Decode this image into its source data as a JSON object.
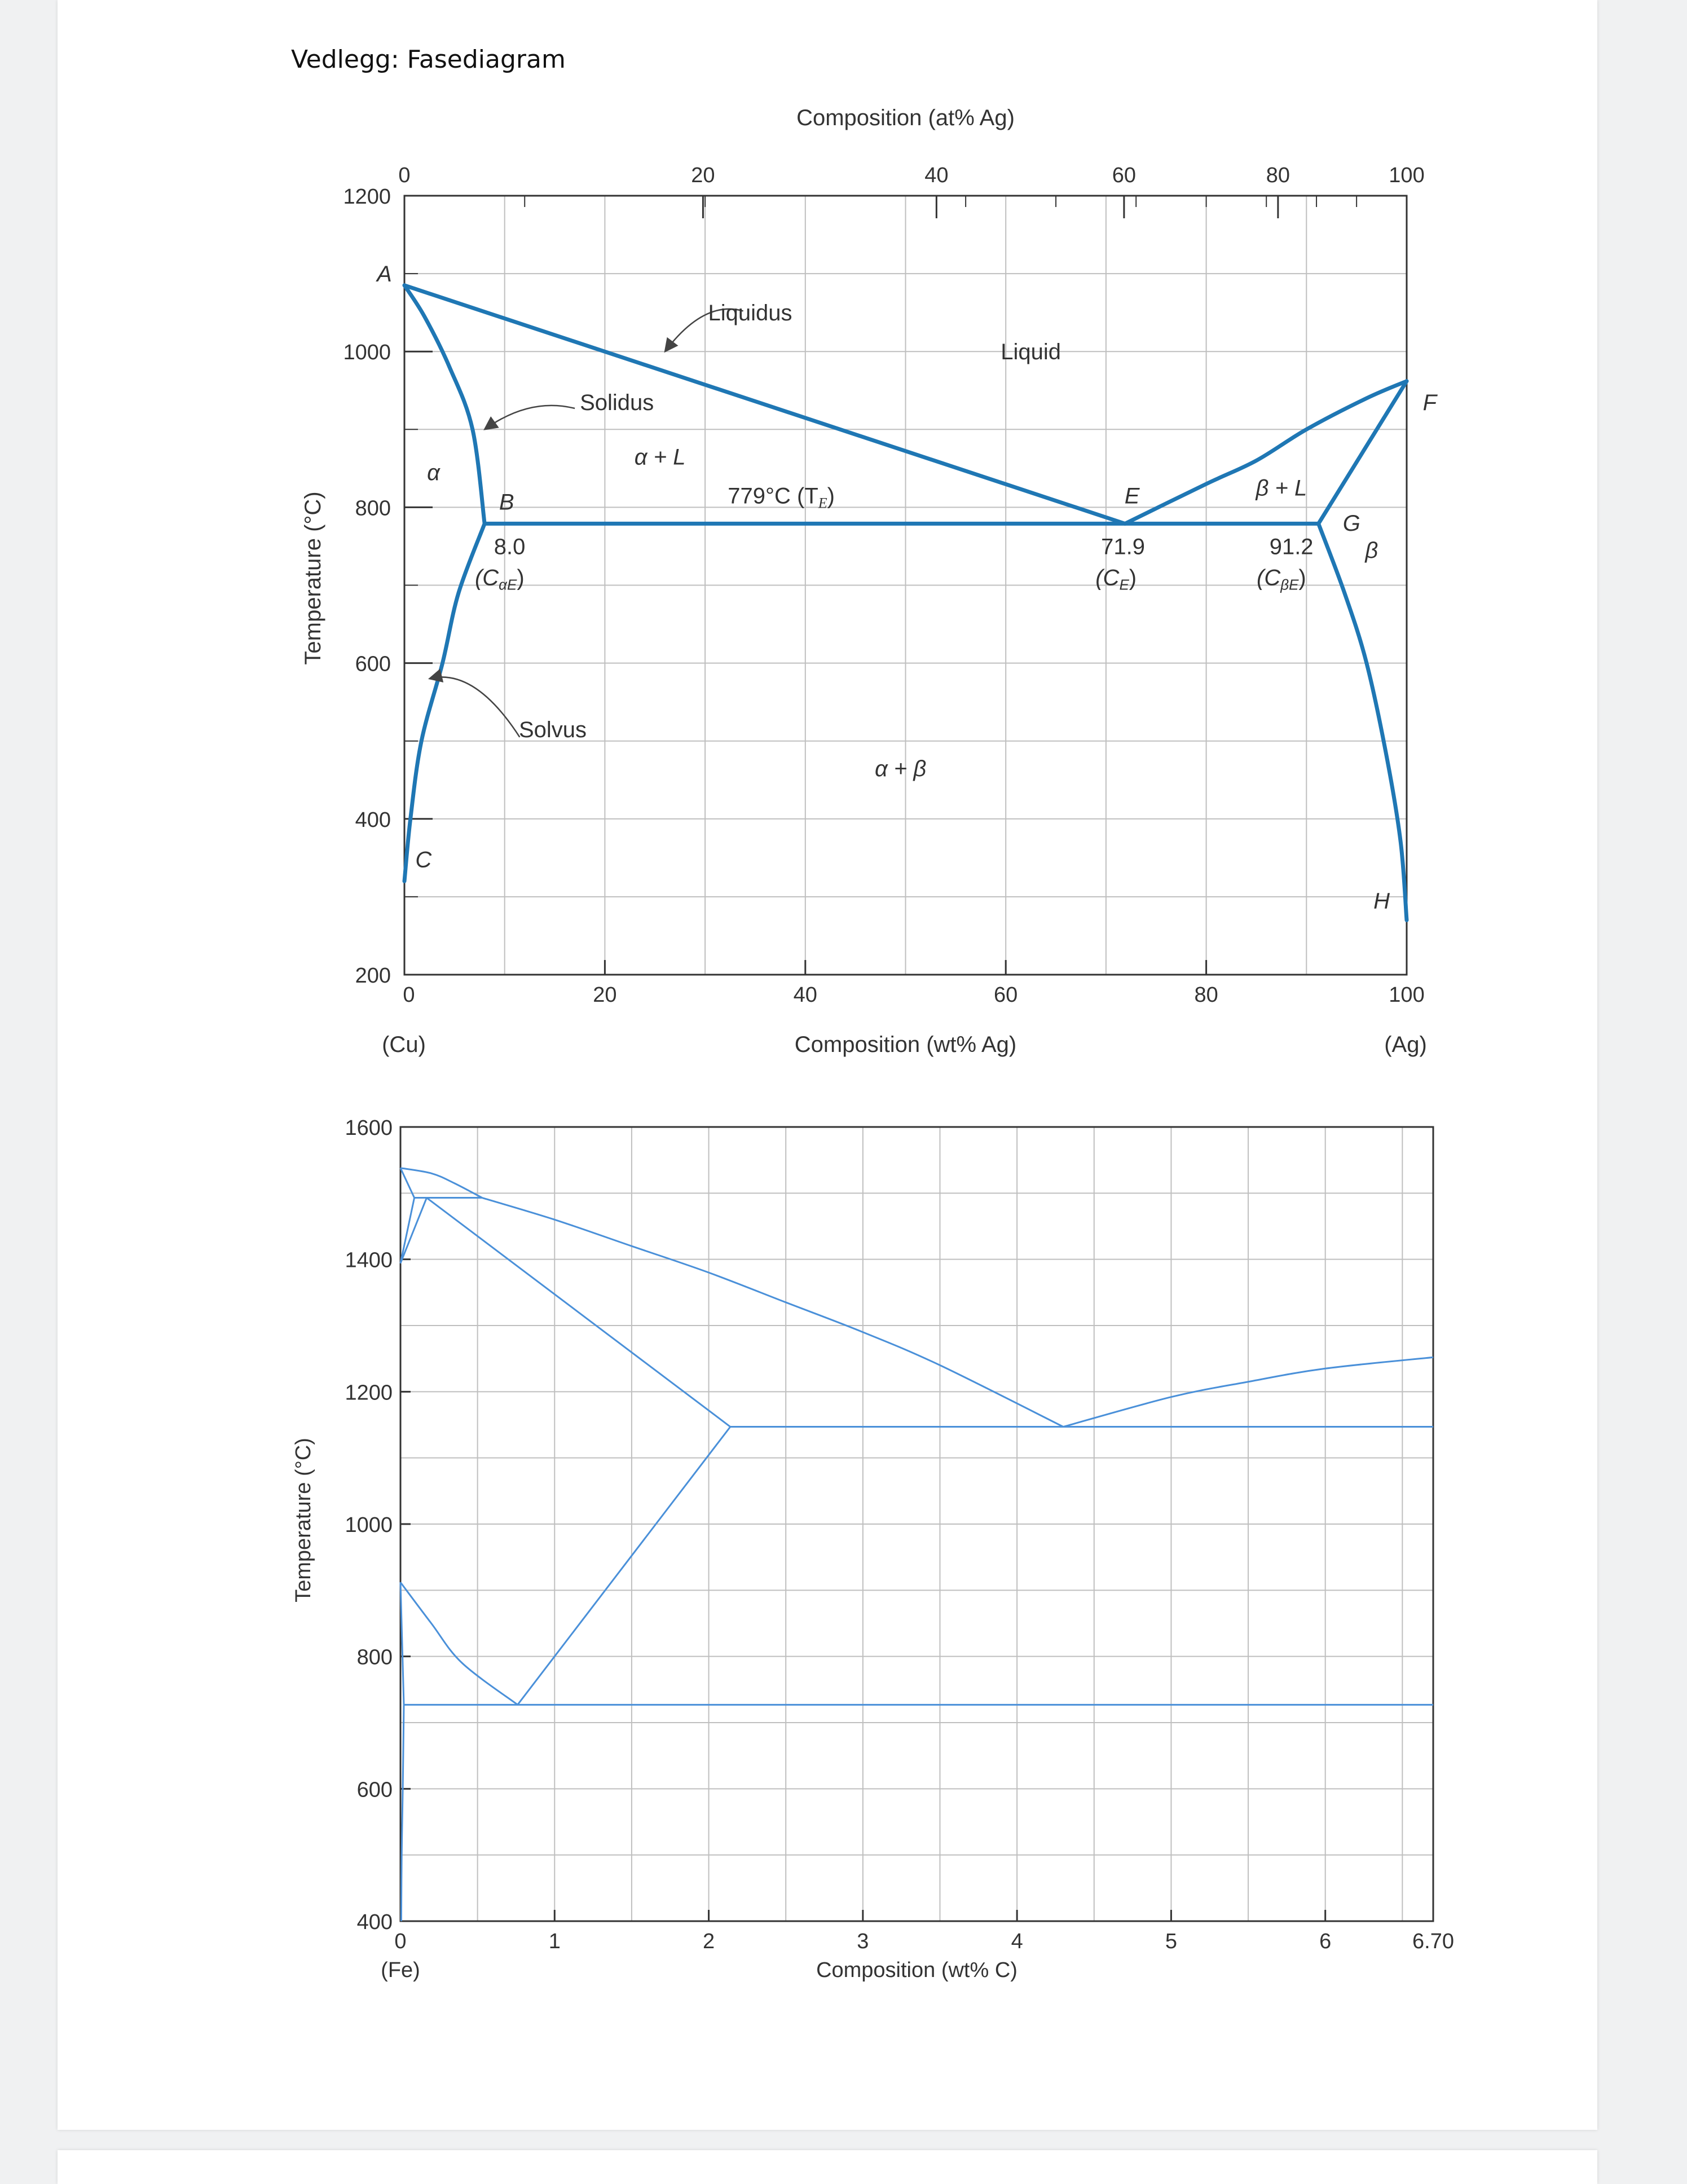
{
  "document": {
    "title": "Vedlegg: Fasediagram"
  },
  "colors": {
    "phase_line": "#1f77b4",
    "thin_line": "#4a90d9",
    "grid": "#bfbfbf",
    "frame": "#333333"
  },
  "chart_data": [
    {
      "type": "line",
      "title": "",
      "xlabel": "Composition (wt% Ag)",
      "xlabel_top": "Composition (at% Ag)",
      "ylabel": "Temperature (°C)",
      "xlim": [
        0,
        100
      ],
      "ylim": [
        200,
        1200
      ],
      "x_ticks": [
        "0",
        "20",
        "40",
        "60",
        "80",
        "100"
      ],
      "x_ticks_top": [
        "0",
        "20",
        "40",
        "60",
        "80",
        "100"
      ],
      "y_ticks": [
        "200",
        "400",
        "600",
        "800",
        "1000",
        "1200"
      ],
      "end_labels": {
        "left": "(Cu)",
        "right": "(Ag)"
      },
      "grid": true,
      "series": [
        {
          "values": [
            [
              0,
              1085
            ],
            [
              71.9,
              779
            ]
          ]
        },
        {
          "values": [
            [
              0,
              1085
            ],
            [
              2,
              1045
            ],
            [
              4.5,
              980
            ],
            [
              6.8,
              900
            ],
            [
              8,
              779
            ]
          ]
        },
        {
          "values": [
            [
              0,
              320
            ],
            [
              0.6,
              400
            ],
            [
              1.7,
              500
            ],
            [
              3.8,
              600
            ],
            [
              5.4,
              690
            ],
            [
              8,
              779
            ]
          ]
        },
        {
          "values": [
            [
              8,
              779
            ],
            [
              91.2,
              779
            ]
          ]
        },
        {
          "values": [
            [
              71.9,
              779
            ],
            [
              80,
              830
            ],
            [
              85,
              860
            ],
            [
              90,
              900
            ],
            [
              96,
              940
            ],
            [
              100,
              962
            ]
          ]
        },
        {
          "values": [
            [
              100,
              962
            ],
            [
              91.2,
              779
            ]
          ]
        },
        {
          "values": [
            [
              91.2,
              779
            ],
            [
              93.8,
              690
            ],
            [
              96,
              600
            ],
            [
              98,
              480
            ],
            [
              99.4,
              370
            ],
            [
              100,
              270
            ]
          ]
        }
      ],
      "annotations": [
        {
          "text": "A",
          "x": -2,
          "y": 1090,
          "style": "italic"
        },
        {
          "text": "Liquidus",
          "x": 34.5,
          "y": 1040
        },
        {
          "text": "Liquid",
          "x": 62.5,
          "y": 990
        },
        {
          "text": "F",
          "x": 102.3,
          "y": 925,
          "style": "italic"
        },
        {
          "text": "Solidus",
          "x": 21.2,
          "y": 925
        },
        {
          "text": "α + L",
          "x": 25.5,
          "y": 855,
          "style": "italic"
        },
        {
          "text": "α",
          "x": 2.9,
          "y": 835,
          "style": "italic"
        },
        {
          "text": "B",
          "x": 10.2,
          "y": 797,
          "style": "italic"
        },
        {
          "text": "779°C (T",
          "x": 37.6,
          "y": 805
        },
        {
          "text": "E",
          "x": 72.6,
          "y": 805,
          "style": "italic"
        },
        {
          "text": "β + L",
          "x": 87.5,
          "y": 815,
          "style": "italic"
        },
        {
          "text": "G",
          "x": 94.5,
          "y": 770,
          "style": "italic"
        },
        {
          "text": "β",
          "x": 96.5,
          "y": 735,
          "style": "italic"
        },
        {
          "text": "8.0",
          "x": 10.5,
          "y": 740
        },
        {
          "text": "(C",
          "x": 9.5,
          "y": 700,
          "style": "italic"
        },
        {
          "text": "71.9",
          "x": 71.7,
          "y": 740
        },
        {
          "text": "(C",
          "x": 71.0,
          "y": 700,
          "style": "italic"
        },
        {
          "text": "91.2",
          "x": 88.5,
          "y": 740
        },
        {
          "text": "(C",
          "x": 87.5,
          "y": 700,
          "style": "italic"
        },
        {
          "text": "Solvus",
          "x": 14.8,
          "y": 505
        },
        {
          "text": "α + β",
          "x": 49.5,
          "y": 455,
          "style": "italic"
        },
        {
          "text": "C",
          "x": 1.9,
          "y": 338,
          "style": "italic"
        },
        {
          "text": "H",
          "x": 97.5,
          "y": 285,
          "style": "italic"
        }
      ],
      "subscripts": {
        "TE": "E",
        "CaE": "αE",
        "CE": "E",
        "CbE": "βE"
      },
      "arrows": [
        {
          "from": [
            33.8,
            1052
          ],
          "to": [
            26,
            1000
          ]
        },
        {
          "from": [
            17,
            927
          ],
          "to": [
            8,
            900
          ]
        },
        {
          "from": [
            11.5,
            505
          ],
          "to": [
            2.5,
            580
          ]
        }
      ]
    },
    {
      "type": "line",
      "title": "",
      "xlabel": "Composition (wt% C)",
      "ylabel": "Temperature (°C)",
      "xlim": [
        0,
        6.7
      ],
      "ylim": [
        400,
        1600
      ],
      "x_ticks": [
        "0",
        "1",
        "2",
        "3",
        "4",
        "5",
        "6",
        "6.70"
      ],
      "y_ticks": [
        "400",
        "600",
        "800",
        "1000",
        "1200",
        "1400",
        "1600"
      ],
      "end_labels": {
        "left": "(Fe)"
      },
      "grid": true,
      "series": [
        {
          "values": [
            [
              0,
              1538
            ],
            [
              0.2,
              1530
            ],
            [
              0.35,
              1515
            ],
            [
              0.53,
              1493
            ]
          ]
        },
        {
          "values": [
            [
              0.53,
              1493
            ],
            [
              1.0,
              1460
            ],
            [
              1.5,
              1420
            ],
            [
              2.0,
              1380
            ],
            [
              2.5,
              1335
            ],
            [
              3.0,
              1290
            ],
            [
              3.5,
              1240
            ],
            [
              4.3,
              1147
            ]
          ]
        },
        {
          "values": [
            [
              4.3,
              1147
            ],
            [
              5.0,
              1192
            ],
            [
              5.5,
              1215
            ],
            [
              6.0,
              1235
            ],
            [
              6.7,
              1252
            ]
          ]
        },
        {
          "values": [
            [
              0.17,
              1493
            ],
            [
              0.53,
              1493
            ]
          ]
        },
        {
          "values": [
            [
              0,
              1538
            ],
            [
              0.09,
              1493
            ]
          ]
        },
        {
          "values": [
            [
              0.09,
              1493
            ],
            [
              0,
              1394
            ]
          ]
        },
        {
          "values": [
            [
              0.09,
              1493
            ],
            [
              0.17,
              1493
            ]
          ]
        },
        {
          "values": [
            [
              0.17,
              1493
            ],
            [
              0,
              1394
            ]
          ]
        },
        {
          "values": [
            [
              0.17,
              1493
            ],
            [
              2.14,
              1147
            ]
          ]
        },
        {
          "values": [
            [
              2.14,
              1147
            ],
            [
              6.7,
              1147
            ]
          ]
        },
        {
          "values": [
            [
              2.14,
              1147
            ],
            [
              0.76,
              727
            ]
          ]
        },
        {
          "values": [
            [
              0,
              912
            ],
            [
              0.2,
              850
            ],
            [
              0.4,
              790
            ],
            [
              0.76,
              727
            ]
          ]
        },
        {
          "values": [
            [
              0.022,
              727
            ],
            [
              6.7,
              727
            ]
          ]
        },
        {
          "values": [
            [
              0,
              912
            ],
            [
              0.022,
              727
            ]
          ]
        },
        {
          "values": [
            [
              0.022,
              727
            ],
            [
              0.015,
              600
            ],
            [
              0.008,
              500
            ],
            [
              0.005,
              400
            ]
          ]
        }
      ]
    }
  ]
}
